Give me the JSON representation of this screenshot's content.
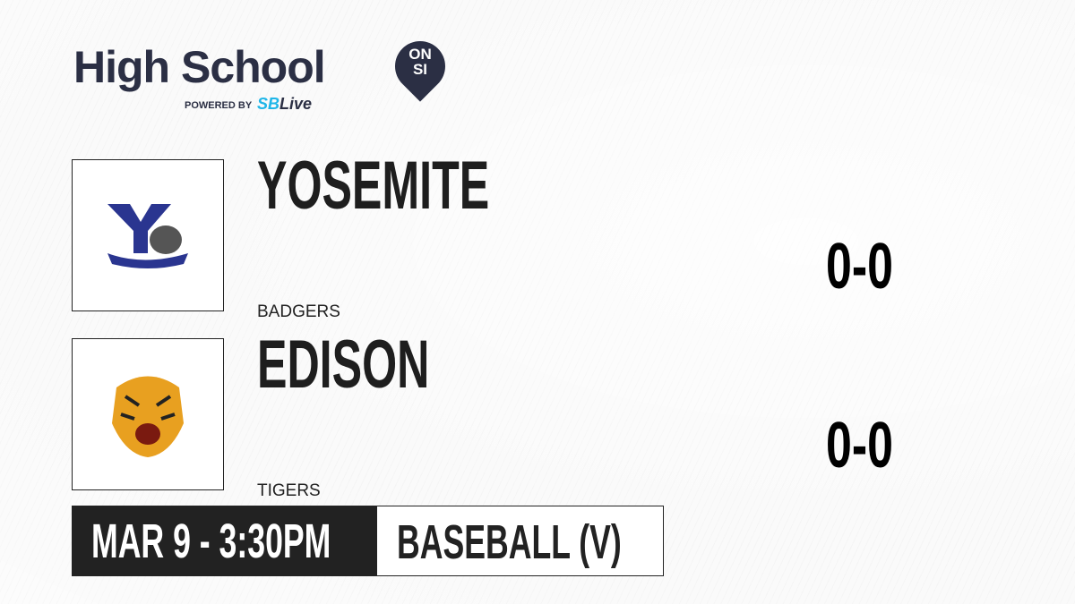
{
  "brand": {
    "title": "High School",
    "badge_top": "ON",
    "badge_bottom": "SI",
    "powered_by": "POWERED BY",
    "partner_prefix": "SB",
    "partner_suffix": "Live"
  },
  "teams": [
    {
      "name": "YOSEMITE",
      "mascot": "BADGERS",
      "score": "0-0",
      "logo_text": "BADGERS",
      "logo_color": "#2a3590"
    },
    {
      "name": "EDISON",
      "mascot": "TIGERS",
      "score": "0-0",
      "logo_color": "#e8a020"
    }
  ],
  "game": {
    "datetime": "MAR 9 - 3:30PM",
    "sport": "BASEBALL (V)"
  }
}
